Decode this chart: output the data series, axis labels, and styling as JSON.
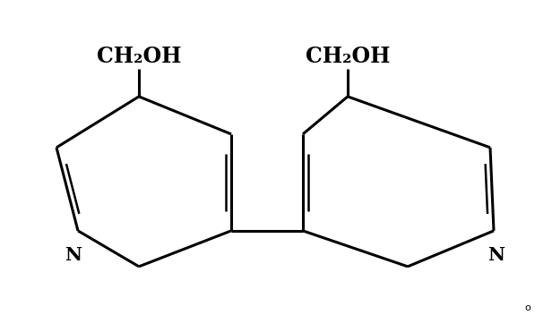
{
  "bg_color": "#ffffff",
  "line_color": "#000000",
  "line_width": 2.2,
  "text_color": "#000000",
  "label_left": "CH₂OH",
  "label_right": "CH₂OH",
  "label_N_left": "N",
  "label_N_right": "N",
  "small_o": "o",
  "figsize": [
    6.16,
    3.52
  ],
  "dpi": 100,
  "xlim": [
    0,
    10
  ],
  "ylim": [
    0,
    5.71
  ]
}
